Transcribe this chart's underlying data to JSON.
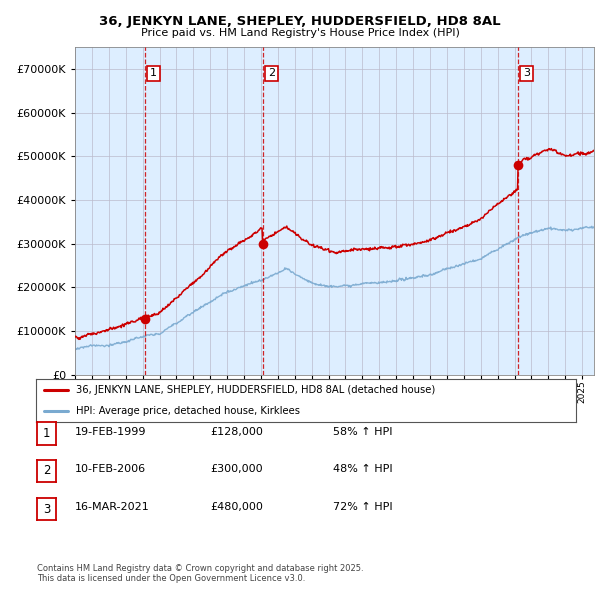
{
  "title1": "36, JENKYN LANE, SHEPLEY, HUDDERSFIELD, HD8 8AL",
  "title2": "Price paid vs. HM Land Registry's House Price Index (HPI)",
  "legend_label1": "36, JENKYN LANE, SHEPLEY, HUDDERSFIELD, HD8 8AL (detached house)",
  "legend_label2": "HPI: Average price, detached house, Kirklees",
  "sale_color": "#cc0000",
  "hpi_color": "#7aaad0",
  "chart_bg": "#ddeeff",
  "sale_points": [
    {
      "date": 1999.12,
      "price": 128000,
      "label": "1"
    },
    {
      "date": 2006.1,
      "price": 300000,
      "label": "2"
    },
    {
      "date": 2021.2,
      "price": 480000,
      "label": "3"
    }
  ],
  "vline_color": "#cc0000",
  "table_rows": [
    [
      "1",
      "19-FEB-1999",
      "£128,000",
      "58% ↑ HPI"
    ],
    [
      "2",
      "10-FEB-2006",
      "£300,000",
      "48% ↑ HPI"
    ],
    [
      "3",
      "16-MAR-2021",
      "£480,000",
      "72% ↑ HPI"
    ]
  ],
  "footnote": "Contains HM Land Registry data © Crown copyright and database right 2025.\nThis data is licensed under the Open Government Licence v3.0.",
  "ylim": [
    0,
    750000
  ],
  "yticks": [
    0,
    100000,
    200000,
    300000,
    400000,
    500000,
    600000,
    700000
  ],
  "xlim_start": 1995.3,
  "xlim_end": 2025.7,
  "background_color": "#ffffff",
  "grid_color": "#bbbbcc"
}
